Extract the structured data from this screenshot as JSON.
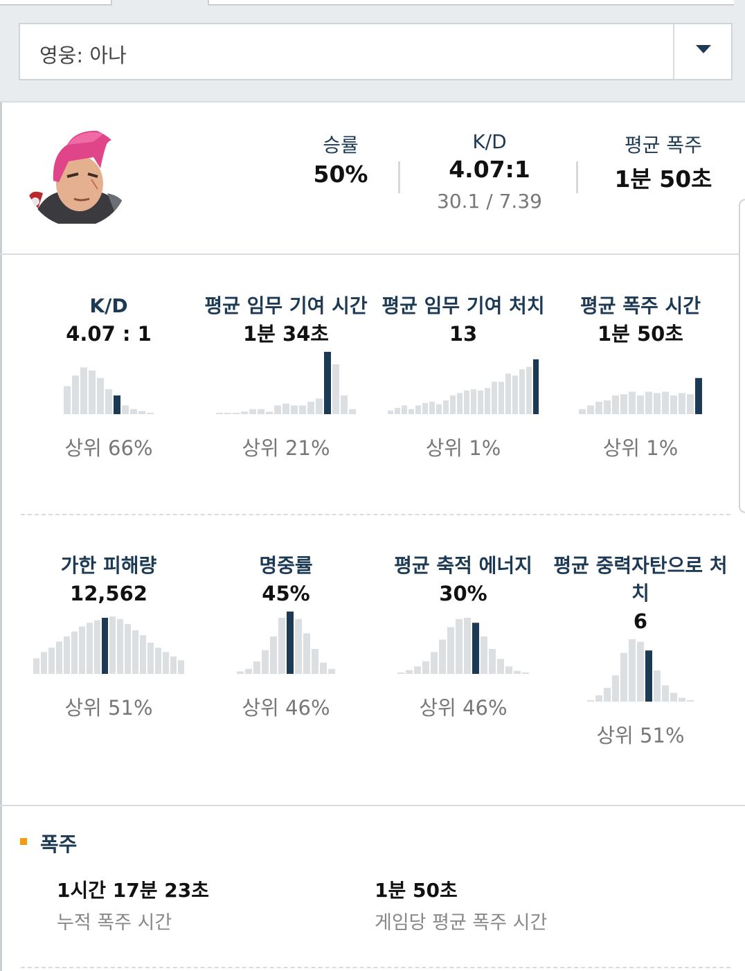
{
  "hero_select": {
    "label": "영웅: 아나"
  },
  "summary": {
    "winrate": {
      "label": "승률",
      "value": "50%"
    },
    "kd": {
      "label": "K/D",
      "value": "4.07:1",
      "sub": "30.1 / 7.39"
    },
    "burst": {
      "label": "평균 폭주",
      "value": "1분 50초"
    }
  },
  "stats": [
    {
      "title": "K/D",
      "value": "4.07 : 1",
      "rank": "상위 66%",
      "bars": [
        0.45,
        0.62,
        0.75,
        0.7,
        0.58,
        0.4,
        0.3,
        0.14,
        0.08,
        0.05,
        0.02
      ],
      "highlight": 6
    },
    {
      "title": "평균 임무 기여 시간",
      "value": "1분 34초",
      "rank": "상위 21%",
      "bars": [
        0.01,
        0.01,
        0.01,
        0.04,
        0.08,
        0.08,
        0.04,
        0.14,
        0.17,
        0.14,
        0.14,
        0.2,
        0.25,
        1.0,
        0.8,
        0.3,
        0.08
      ],
      "highlight": 13
    },
    {
      "title": "평균 임무 기여 처치",
      "value": "13",
      "rank": "상위 1%",
      "bars": [
        0.06,
        0.1,
        0.14,
        0.08,
        0.14,
        0.18,
        0.2,
        0.16,
        0.22,
        0.3,
        0.34,
        0.38,
        0.4,
        0.38,
        0.42,
        0.52,
        0.52,
        0.65,
        0.62,
        0.72,
        0.76,
        0.88
      ],
      "highlight": 21
    },
    {
      "title": "평균 폭주 시간",
      "value": "1분 50초",
      "rank": "상위 1%",
      "bars": [
        0.08,
        0.14,
        0.2,
        0.22,
        0.3,
        0.32,
        0.36,
        0.3,
        0.36,
        0.34,
        0.36,
        0.3,
        0.34,
        0.32,
        0.58
      ],
      "highlight": 14
    }
  ],
  "stats2": [
    {
      "title": "가한 피해량",
      "value": "12,562",
      "rank": "상위 51%",
      "bars": [
        0.25,
        0.35,
        0.42,
        0.52,
        0.6,
        0.68,
        0.76,
        0.82,
        0.86,
        0.9,
        0.92,
        0.88,
        0.8,
        0.7,
        0.62,
        0.5,
        0.42,
        0.35,
        0.28,
        0.22
      ],
      "highlight": 9
    },
    {
      "title": "명중률",
      "value": "45%",
      "rank": "상위 46%",
      "bars": [
        0.04,
        0.08,
        0.2,
        0.38,
        0.6,
        0.9,
        1.0,
        0.88,
        0.65,
        0.4,
        0.18,
        0.08
      ],
      "highlight": 6
    },
    {
      "title": "평균 축적 에너지",
      "value": "30%",
      "rank": "상위 46%",
      "bars": [
        0.02,
        0.06,
        0.12,
        0.2,
        0.35,
        0.55,
        0.75,
        0.88,
        0.9,
        0.82,
        0.6,
        0.4,
        0.24,
        0.12,
        0.05,
        0.02
      ],
      "highlight": 9
    },
    {
      "title": "평균 중력자탄으로 처치",
      "value": "6",
      "rank": "상위 51%",
      "bars": [
        0.02,
        0.1,
        0.22,
        0.42,
        0.78,
        1.0,
        0.96,
        0.82,
        0.5,
        0.26,
        0.14,
        0.06,
        0.02
      ],
      "highlight": 7
    }
  ],
  "burst_section": {
    "title": "폭주",
    "total": {
      "value": "1시간 17분 23초",
      "label": "누적 폭주 시간"
    },
    "avg": {
      "value": "1분 50초",
      "label": "게임당 평균 폭주 시간"
    }
  },
  "colors": {
    "accent": "#1d3a55",
    "bar": "#dcdfe2",
    "marker": "#f39c12"
  },
  "icons": {
    "dropdown": "chevron-down-icon",
    "hero": "zarya-hero-portrait"
  }
}
